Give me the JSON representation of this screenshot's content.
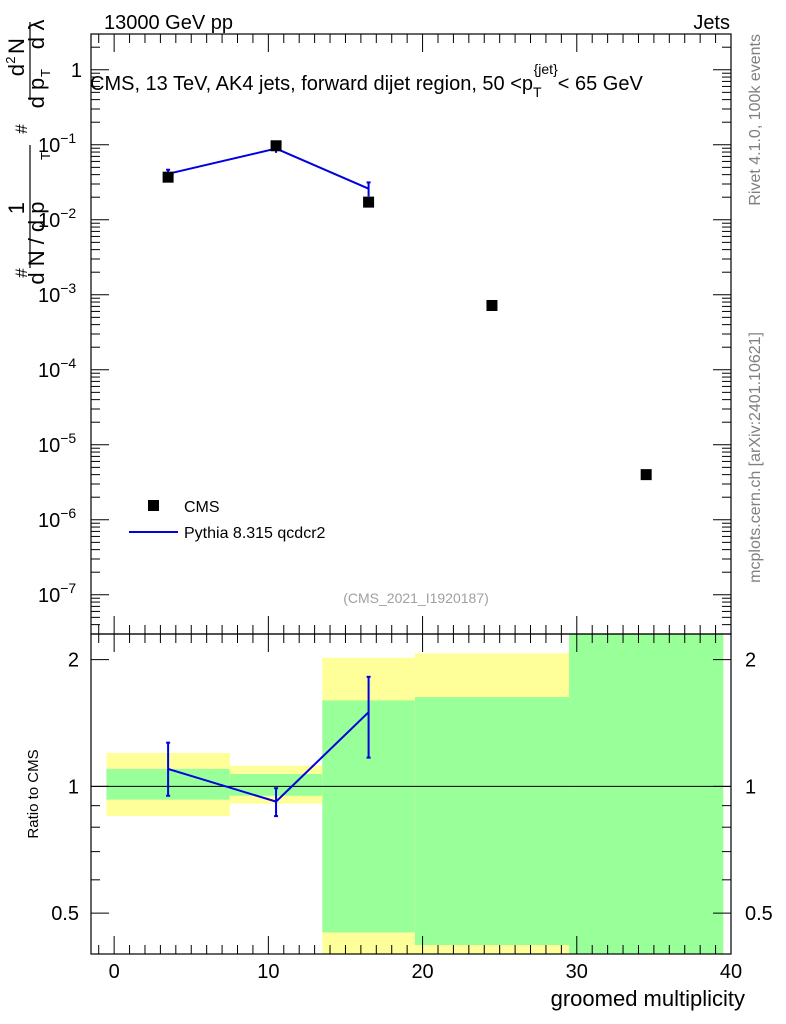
{
  "header": {
    "left": "13000 GeV pp",
    "right": "Jets"
  },
  "side": {
    "rivet": "Rivet 4.1.0,  100k events",
    "mcplots": "mcplots.cern.ch [arXiv:2401.10621]"
  },
  "colors": {
    "data": "#000000",
    "mc": "#0000e0",
    "band_inner": "#99ff99",
    "band_outer": "#ffff99"
  },
  "chart_data": {
    "type": "scatter",
    "title": "CMS, 13 TeV, AK4 jets, forward dijet region, 50 <p_T^{jet}< 65 GeV",
    "analysis_id": "(CMS_2021_I1920187)",
    "xlabel": "groomed multiplicity",
    "ylabel": "1/dN/dp_T  d^2N/dp_T dλ",
    "ratio_ylabel": "Ratio to CMS",
    "xlim": [
      -1.5,
      40
    ],
    "ylim": [
      3e-08,
      3
    ],
    "yscale": "log",
    "ratio_ylim": [
      0.4,
      2.3
    ],
    "x_ticks": [
      0,
      10,
      20,
      30,
      40
    ],
    "x_tick_labels": [
      "0",
      "10",
      "20",
      "30",
      "40"
    ],
    "y_ticks": [
      1,
      0.1,
      0.01,
      0.001,
      0.0001,
      1e-05,
      1e-06,
      1e-07
    ],
    "y_tick_labels": [
      {
        "base": "1",
        "exp": ""
      },
      {
        "base": "10",
        "exp": "−1"
      },
      {
        "base": "10",
        "exp": "−2"
      },
      {
        "base": "10",
        "exp": "−3"
      },
      {
        "base": "10",
        "exp": "−4"
      },
      {
        "base": "10",
        "exp": "−5"
      },
      {
        "base": "10",
        "exp": "−6"
      },
      {
        "base": "10",
        "exp": "−7"
      }
    ],
    "ratio_ticks": [
      0.5,
      1,
      2
    ],
    "ratio_tick_labels": [
      "0.5",
      "1",
      "2"
    ],
    "legend": [
      {
        "name": "CMS",
        "marker": "square"
      },
      {
        "name": "Pythia 8.315 qcdcr2",
        "marker": "line"
      }
    ],
    "series": [
      {
        "name": "CMS",
        "x": [
          3.5,
          10.5,
          16.5,
          24.5,
          34.5
        ],
        "y": [
          0.037,
          0.097,
          0.0172,
          0.00072,
          4e-06
        ],
        "bins": [
          [
            -0.5,
            7.5
          ],
          [
            7.5,
            13.5
          ],
          [
            13.5,
            19.5
          ],
          [
            19.5,
            29.5
          ],
          [
            29.5,
            39.5
          ]
        ],
        "ratio_band_inner": [
          [
            0.93,
            1.1
          ],
          [
            0.95,
            1.07
          ],
          [
            0.45,
            1.6
          ],
          [
            0.42,
            1.63
          ],
          [
            0.4,
            2.3
          ]
        ],
        "ratio_band_outer": [
          [
            0.85,
            1.2
          ],
          [
            0.91,
            1.12
          ],
          [
            0.4,
            2.02
          ],
          [
            0.4,
            2.07
          ],
          [
            0.4,
            2.3
          ]
        ]
      },
      {
        "name": "Pythia 8.315 qcdcr2",
        "x": [
          3.5,
          10.5,
          16.5
        ],
        "y": [
          0.041,
          0.089,
          0.026
        ],
        "y_err_lo": [
          0.0355,
          0.078,
          0.0205
        ],
        "y_err_hi": [
          0.0465,
          0.1,
          0.0315
        ],
        "ratio": [
          1.1,
          0.92,
          1.5
        ],
        "ratio_err_lo": [
          0.95,
          0.85,
          1.17
        ],
        "ratio_err_hi": [
          1.27,
          0.99,
          1.82
        ]
      }
    ]
  }
}
